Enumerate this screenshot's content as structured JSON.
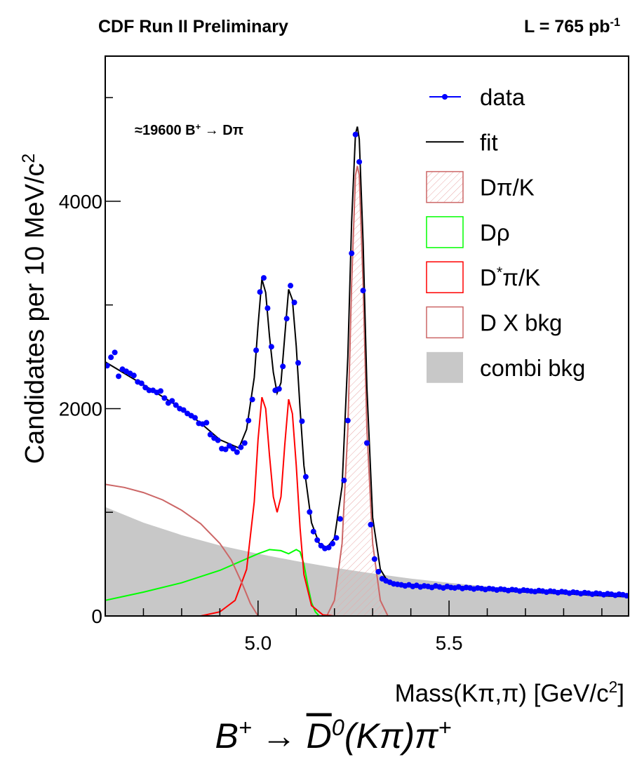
{
  "chart_data": {
    "type": "line",
    "title": [
      {
        "text": "CDF Run II Preliminary"
      }
    ],
    "subtitle": [
      {
        "text": "L = 765 pb"
      },
      {
        "text": "-1",
        "sup": true
      }
    ],
    "annotation": [
      {
        "text": "≈19600 B"
      },
      {
        "text": "+",
        "sup": true
      },
      {
        "text": " → Dπ"
      }
    ],
    "ylabel": [
      {
        "text": "Candidates per 10 MeV/c"
      },
      {
        "text": "2",
        "sup": true
      }
    ],
    "xlabel": [
      {
        "text": "Mass(Kπ,π)  [GeV/c"
      },
      {
        "text": "2",
        "sup": true
      },
      {
        "text": "]"
      }
    ],
    "formula": [
      {
        "text": "B"
      },
      {
        "text": "+",
        "sup": true
      },
      {
        "text": " → "
      },
      {
        "text": "D",
        "overline": true
      },
      {
        "text": "0",
        "sup": true
      },
      {
        "text": "(Kπ)π"
      },
      {
        "text": "+",
        "sup": true
      }
    ],
    "xlim": [
      4.6,
      5.97
    ],
    "ylim": [
      0,
      5400
    ],
    "xticks": [
      {
        "value": 5,
        "label": "5.0"
      },
      5.5
    ],
    "xticks_minor": [
      4.7,
      4.8,
      4.9,
      5.1,
      5.2,
      5.3,
      5.4,
      5.6,
      5.7,
      5.8,
      5.9
    ],
    "yticks": [
      0,
      2000,
      4000
    ],
    "yticks_minor": [
      1000,
      3000,
      5000
    ],
    "legend": "top-right",
    "x": [
      4.605,
      4.615,
      4.625,
      4.635,
      4.645,
      4.655,
      4.665,
      4.675,
      4.685,
      4.695,
      4.705,
      4.715,
      4.725,
      4.735,
      4.745,
      4.755,
      4.765,
      4.775,
      4.785,
      4.795,
      4.805,
      4.815,
      4.825,
      4.835,
      4.845,
      4.855,
      4.865,
      4.875,
      4.885,
      4.895,
      4.905,
      4.915,
      4.925,
      4.935,
      4.945,
      4.955,
      4.965,
      4.975,
      4.985,
      4.995,
      5.005,
      5.015,
      5.025,
      5.035,
      5.045,
      5.055,
      5.065,
      5.075,
      5.085,
      5.095,
      5.105,
      5.115,
      5.125,
      5.135,
      5.145,
      5.155,
      5.165,
      5.175,
      5.185,
      5.195,
      5.205,
      5.215,
      5.225,
      5.235,
      5.245,
      5.255,
      5.265,
      5.275,
      5.285,
      5.295,
      5.305,
      5.315,
      5.325,
      5.335,
      5.345,
      5.355,
      5.365,
      5.375,
      5.385,
      5.395,
      5.405,
      5.415,
      5.425,
      5.435,
      5.445,
      5.455,
      5.465,
      5.475,
      5.485,
      5.495,
      5.505,
      5.515,
      5.525,
      5.535,
      5.545,
      5.555,
      5.565,
      5.575,
      5.585,
      5.595,
      5.605,
      5.615,
      5.625,
      5.635,
      5.645,
      5.655,
      5.665,
      5.675,
      5.685,
      5.695,
      5.705,
      5.715,
      5.725,
      5.735,
      5.745,
      5.755,
      5.765,
      5.775,
      5.785,
      5.795,
      5.805,
      5.815,
      5.825,
      5.835,
      5.845,
      5.855,
      5.865,
      5.875,
      5.885,
      5.895,
      5.905,
      5.915,
      5.925,
      5.935,
      5.945,
      5.955,
      5.965
    ],
    "series": [
      {
        "name": "data",
        "color": "#0000ff",
        "style": "markers",
        "values": [
          2414,
          2495,
          2542,
          2312,
          2380,
          2360,
          2340,
          2320,
          2258,
          2244,
          2203,
          2176,
          2176,
          2156,
          2170,
          2102,
          2054,
          2075,
          2034,
          2000,
          1986,
          1953,
          1932,
          1912,
          1858,
          1851,
          1864,
          1749,
          1715,
          1695,
          1614,
          1607,
          1641,
          1614,
          1580,
          1627,
          1668,
          1885,
          2088,
          2563,
          3125,
          3261,
          2969,
          2597,
          2176,
          2190,
          2407,
          2868,
          3186,
          3024,
          2441,
          1878,
          1342,
          1003,
          814,
          732,
          678,
          651,
          660,
          698,
          753,
          936,
          1308,
          1885,
          3498,
          4644,
          4380,
          3139,
          1668,
          881,
          549,
          427,
          359,
          339,
          325,
          310,
          305,
          300,
          290,
          300,
          285,
          295,
          280,
          290,
          285,
          275,
          290,
          280,
          270,
          285,
          275,
          270,
          280,
          265,
          275,
          270,
          260,
          270,
          265,
          255,
          265,
          260,
          250,
          260,
          255,
          245,
          255,
          250,
          240,
          250,
          245,
          240,
          235,
          245,
          240,
          230,
          240,
          235,
          225,
          235,
          230,
          220,
          230,
          225,
          215,
          225,
          220,
          210,
          220,
          215,
          205,
          215,
          210,
          200,
          210,
          205,
          195
        ]
      },
      {
        "name": "fit",
        "color": "#000000",
        "style": "line",
        "x": [
          4.6,
          4.7,
          4.8,
          4.85,
          4.9,
          4.95,
          4.97,
          4.99,
          5.0,
          5.01,
          5.02,
          5.03,
          5.04,
          5.05,
          5.06,
          5.07,
          5.08,
          5.09,
          5.1,
          5.11,
          5.12,
          5.14,
          5.16,
          5.18,
          5.2,
          5.22,
          5.235,
          5.245,
          5.255,
          5.26,
          5.265,
          5.275,
          5.285,
          5.3,
          5.32,
          5.34,
          5.4,
          5.5,
          5.6,
          5.7,
          5.8,
          5.9,
          5.97
        ],
        "values": [
          2450,
          2230,
          2000,
          1860,
          1700,
          1620,
          1800,
          2300,
          2800,
          3250,
          3120,
          2700,
          2350,
          2150,
          2250,
          2700,
          3150,
          3050,
          2600,
          2000,
          1450,
          900,
          700,
          660,
          750,
          1250,
          2500,
          3800,
          4650,
          4720,
          4600,
          3600,
          2200,
          950,
          450,
          330,
          300,
          270,
          250,
          230,
          215,
          195,
          185
        ]
      },
      {
        "name": "Dπ/K",
        "color": "#cc6666",
        "style": "hatch",
        "x": [
          5.18,
          5.2,
          5.22,
          5.235,
          5.245,
          5.255,
          5.26,
          5.265,
          5.275,
          5.285,
          5.3,
          5.32,
          5.34
        ],
        "values": [
          0,
          150,
          700,
          1800,
          3200,
          4250,
          4340,
          4250,
          3200,
          1800,
          700,
          150,
          0
        ]
      },
      {
        "name": "Dρ",
        "color": "#00ff00",
        "style": "line",
        "x": [
          4.6,
          4.7,
          4.8,
          4.9,
          4.95,
          5.0,
          5.03,
          5.06,
          5.08,
          5.1,
          5.11,
          5.12,
          5.13,
          5.14,
          5.15,
          5.16,
          5.97
        ],
        "values": [
          150,
          230,
          320,
          440,
          520,
          600,
          640,
          630,
          600,
          640,
          620,
          500,
          300,
          130,
          40,
          0,
          0
        ]
      },
      {
        "name": "D*π/K",
        "color": "#ff0000",
        "style": "line",
        "x": [
          4.6,
          4.85,
          4.9,
          4.94,
          4.97,
          4.99,
          5.0,
          5.01,
          5.02,
          5.03,
          5.04,
          5.05,
          5.06,
          5.07,
          5.08,
          5.09,
          5.1,
          5.11,
          5.12,
          5.14,
          5.17,
          5.2,
          5.97
        ],
        "values": [
          0,
          0,
          40,
          150,
          450,
          1100,
          1700,
          2110,
          2000,
          1550,
          1150,
          1000,
          1150,
          1650,
          2090,
          1950,
          1450,
          850,
          400,
          100,
          10,
          0,
          0
        ]
      },
      {
        "name": "D X  bkg",
        "color": "#cc6666",
        "style": "line",
        "x": [
          4.6,
          4.65,
          4.7,
          4.75,
          4.8,
          4.85,
          4.9,
          4.93,
          4.96,
          4.98,
          5.0,
          5.97
        ],
        "values": [
          1270,
          1240,
          1190,
          1120,
          1020,
          890,
          700,
          540,
          300,
          120,
          0,
          0
        ]
      },
      {
        "name": "combi bkg",
        "color": "#c8c8c8",
        "style": "area",
        "x": [
          4.6,
          4.7,
          4.8,
          4.9,
          5.0,
          5.1,
          5.2,
          5.3,
          5.4,
          5.5,
          5.6,
          5.7,
          5.8,
          5.9,
          5.97
        ],
        "values": [
          1050,
          900,
          780,
          680,
          600,
          530,
          465,
          410,
          360,
          320,
          285,
          255,
          225,
          200,
          180
        ]
      }
    ]
  }
}
